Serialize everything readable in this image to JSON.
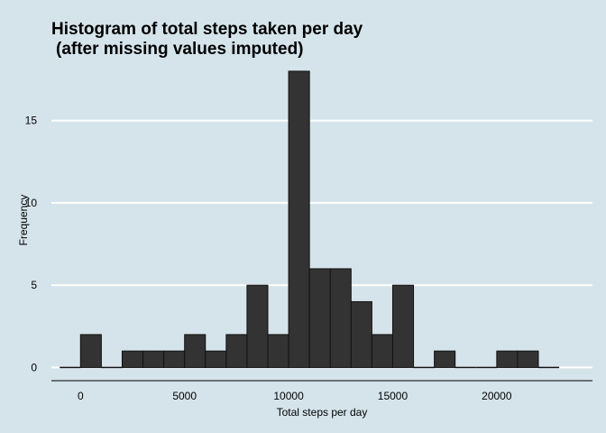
{
  "chart_data": {
    "type": "bar",
    "title": "Histogram of total steps taken per day",
    "subtitle": "(after missing values imputed)",
    "xlabel": "Total steps per day",
    "ylabel": "Frequency",
    "xlim": [
      -1400,
      24600
    ],
    "ylim": [
      -0.8,
      18.6
    ],
    "x_ticks": [
      0,
      5000,
      10000,
      15000,
      20000
    ],
    "y_ticks": [
      0,
      5,
      10,
      15
    ],
    "grid": true,
    "bin_width": 1000,
    "bins": [
      {
        "start": -1000,
        "end": 0,
        "count": 0
      },
      {
        "start": 0,
        "end": 1000,
        "count": 2
      },
      {
        "start": 1000,
        "end": 2000,
        "count": 0
      },
      {
        "start": 2000,
        "end": 3000,
        "count": 1
      },
      {
        "start": 3000,
        "end": 4000,
        "count": 1
      },
      {
        "start": 4000,
        "end": 5000,
        "count": 1
      },
      {
        "start": 5000,
        "end": 6000,
        "count": 2
      },
      {
        "start": 6000,
        "end": 7000,
        "count": 1
      },
      {
        "start": 7000,
        "end": 8000,
        "count": 2
      },
      {
        "start": 8000,
        "end": 9000,
        "count": 5
      },
      {
        "start": 9000,
        "end": 10000,
        "count": 2
      },
      {
        "start": 10000,
        "end": 11000,
        "count": 18
      },
      {
        "start": 11000,
        "end": 12000,
        "count": 6
      },
      {
        "start": 12000,
        "end": 13000,
        "count": 6
      },
      {
        "start": 13000,
        "end": 14000,
        "count": 4
      },
      {
        "start": 14000,
        "end": 15000,
        "count": 2
      },
      {
        "start": 15000,
        "end": 16000,
        "count": 5
      },
      {
        "start": 16000,
        "end": 17000,
        "count": 0
      },
      {
        "start": 17000,
        "end": 18000,
        "count": 1
      },
      {
        "start": 18000,
        "end": 19000,
        "count": 0
      },
      {
        "start": 19000,
        "end": 20000,
        "count": 0
      },
      {
        "start": 20000,
        "end": 21000,
        "count": 1
      },
      {
        "start": 21000,
        "end": 22000,
        "count": 1
      },
      {
        "start": 22000,
        "end": 23000,
        "count": 0
      }
    ],
    "colors": {
      "background": "#d5e4eb",
      "bar_fill": "#333333",
      "bar_edge": "#111111",
      "grid": "#ffffff"
    }
  }
}
